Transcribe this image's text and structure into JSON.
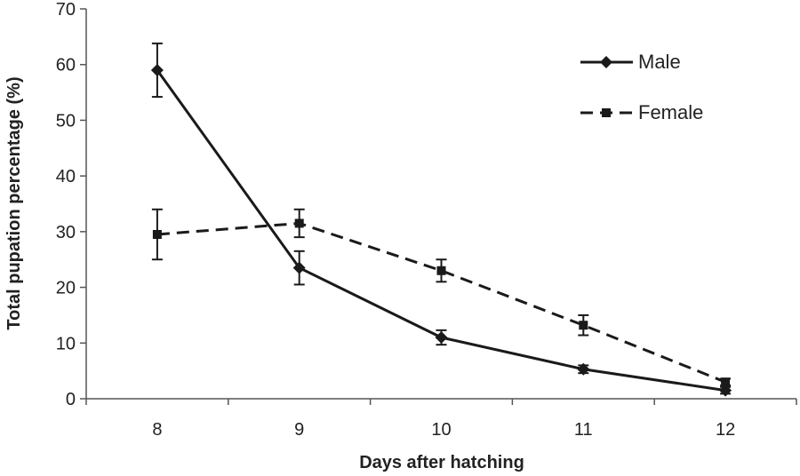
{
  "chart_data": {
    "type": "line",
    "title": "",
    "xlabel": "Days after hatching",
    "ylabel": "Total pupation percentage (%)",
    "categories": [
      "8",
      "9",
      "10",
      "11",
      "12"
    ],
    "ylim": [
      0,
      70
    ],
    "yticks": [
      "0",
      "10",
      "20",
      "30",
      "40",
      "50",
      "60",
      "70"
    ],
    "legend_position": "top-right",
    "series": [
      {
        "name": "Male",
        "style": "solid",
        "marker": "diamond",
        "values": [
          59,
          23.5,
          11,
          5.3,
          1.5
        ],
        "errors": [
          4.8,
          3,
          1.3,
          0.7,
          0.6
        ]
      },
      {
        "name": "Female",
        "style": "dashed",
        "marker": "square",
        "values": [
          29.5,
          31.5,
          23,
          13.2,
          3
        ],
        "errors": [
          4.5,
          2.5,
          2,
          1.8,
          0.6
        ]
      }
    ]
  },
  "colors": {
    "line": "#1a1a1a",
    "axis": "#555555"
  }
}
